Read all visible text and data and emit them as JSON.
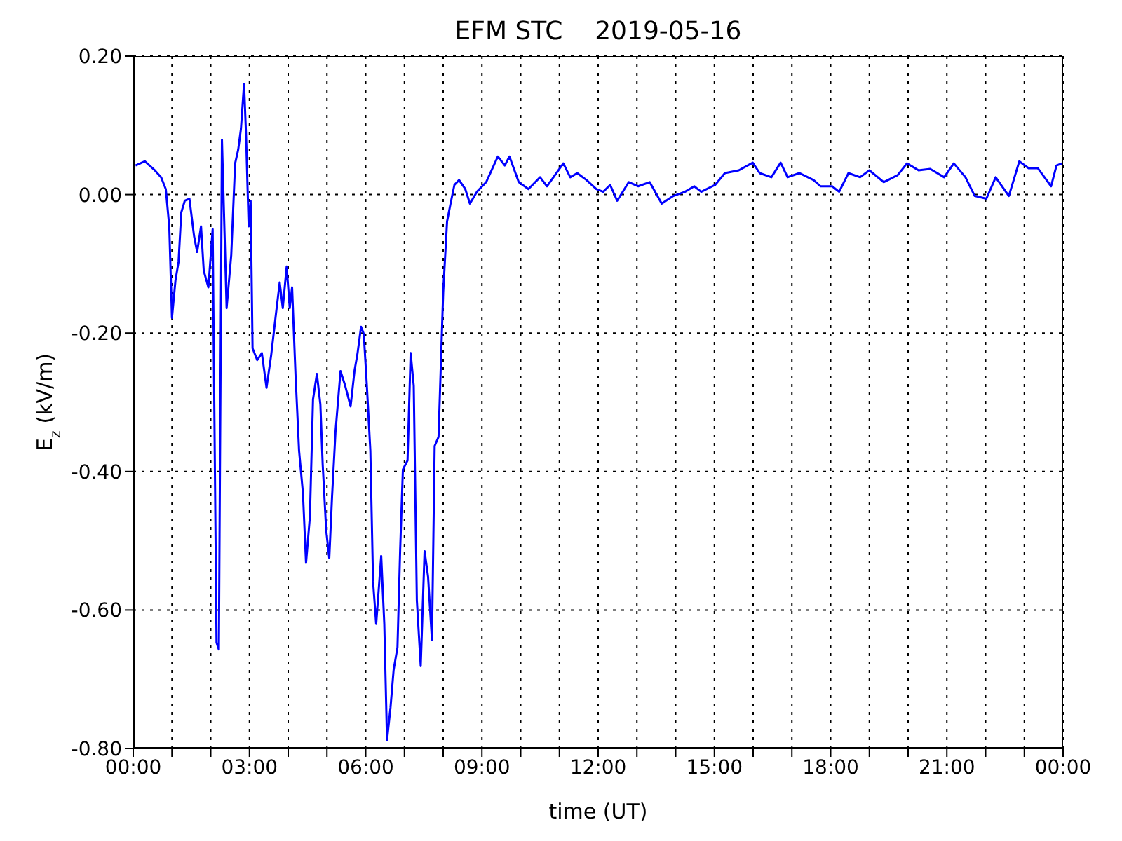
{
  "chart_data": {
    "type": "line",
    "title": "EFM STC    2019-05-16",
    "xlabel": "time (UT)",
    "ylabel": "E$_{z}$ (kV/m)",
    "x": [
      0.06,
      0.3,
      0.54,
      0.72,
      0.84,
      0.93,
      1.0,
      1.09,
      1.17,
      1.24,
      1.33,
      1.45,
      1.57,
      1.65,
      1.75,
      1.82,
      1.94,
      2.05,
      2.15,
      2.21,
      2.29,
      2.41,
      2.53,
      2.63,
      2.71,
      2.78,
      2.86,
      2.91,
      2.98,
      3.03,
      3.08,
      3.2,
      3.32,
      3.44,
      3.56,
      3.68,
      3.78,
      3.86,
      3.96,
      4.04,
      4.1,
      4.19,
      4.28,
      4.38,
      4.46,
      4.56,
      4.64,
      4.74,
      4.83,
      4.89,
      4.98,
      5.06,
      5.13,
      5.22,
      5.35,
      5.47,
      5.61,
      5.71,
      5.79,
      5.88,
      5.95,
      6.03,
      6.12,
      6.19,
      6.27,
      6.4,
      6.48,
      6.55,
      6.64,
      6.72,
      6.82,
      6.89,
      6.96,
      7.08,
      7.16,
      7.24,
      7.32,
      7.42,
      7.52,
      7.61,
      7.71,
      7.78,
      7.88,
      8.0,
      8.1,
      8.19,
      8.29,
      8.41,
      8.57,
      8.69,
      8.87,
      9.11,
      9.41,
      9.59,
      9.71,
      9.95,
      10.2,
      10.5,
      10.68,
      11.1,
      11.28,
      11.46,
      11.7,
      11.95,
      12.13,
      12.31,
      12.49,
      12.79,
      13.03,
      13.33,
      13.64,
      13.94,
      14.24,
      14.48,
      14.66,
      15.02,
      15.27,
      15.63,
      15.99,
      16.17,
      16.47,
      16.71,
      16.89,
      17.19,
      17.56,
      17.74,
      18.04,
      18.22,
      18.46,
      18.76,
      19.0,
      19.37,
      19.73,
      19.97,
      20.27,
      20.57,
      20.93,
      21.18,
      21.48,
      21.72,
      22.02,
      22.26,
      22.6,
      22.87,
      23.11,
      23.35,
      23.69,
      23.83,
      23.97
    ],
    "series": [
      {
        "color": "#0000ff",
        "values": [
          0.042,
          0.048,
          0.036,
          0.025,
          0.008,
          -0.046,
          -0.178,
          -0.124,
          -0.097,
          -0.026,
          -0.009,
          -0.006,
          -0.06,
          -0.083,
          -0.046,
          -0.11,
          -0.134,
          -0.05,
          -0.647,
          -0.657,
          0.079,
          -0.164,
          -0.087,
          0.045,
          0.065,
          0.095,
          0.16,
          0.089,
          -0.046,
          -0.009,
          -0.222,
          -0.239,
          -0.229,
          -0.279,
          -0.232,
          -0.174,
          -0.127,
          -0.164,
          -0.104,
          -0.164,
          -0.134,
          -0.262,
          -0.37,
          -0.431,
          -0.532,
          -0.465,
          -0.296,
          -0.259,
          -0.303,
          -0.39,
          -0.485,
          -0.525,
          -0.438,
          -0.343,
          -0.255,
          -0.276,
          -0.306,
          -0.255,
          -0.229,
          -0.191,
          -0.201,
          -0.276,
          -0.37,
          -0.559,
          -0.62,
          -0.522,
          -0.62,
          -0.788,
          -0.741,
          -0.687,
          -0.654,
          -0.512,
          -0.397,
          -0.384,
          -0.229,
          -0.276,
          -0.586,
          -0.681,
          -0.515,
          -0.552,
          -0.643,
          -0.363,
          -0.35,
          -0.141,
          -0.039,
          -0.013,
          0.014,
          0.021,
          0.008,
          -0.013,
          0.004,
          0.018,
          0.055,
          0.042,
          0.055,
          0.018,
          0.008,
          0.025,
          0.012,
          0.045,
          0.025,
          0.031,
          0.021,
          0.008,
          0.004,
          0.014,
          -0.009,
          0.018,
          0.012,
          0.018,
          -0.013,
          -0.002,
          0.004,
          0.012,
          0.004,
          0.014,
          0.031,
          0.035,
          0.046,
          0.031,
          0.025,
          0.046,
          0.025,
          0.031,
          0.021,
          0.012,
          0.012,
          0.004,
          0.031,
          0.025,
          0.035,
          0.018,
          0.028,
          0.045,
          0.035,
          0.037,
          0.025,
          0.045,
          0.025,
          -0.002,
          -0.006,
          0.025,
          -0.002,
          0.048,
          0.038,
          0.038,
          0.012,
          0.042,
          0.045
        ]
      }
    ],
    "xlim": [
      0,
      24
    ],
    "xticks": [
      {
        "value": 0,
        "label": "00:00"
      },
      {
        "value": 1,
        "label": null
      },
      {
        "value": 2,
        "label": null
      },
      {
        "value": 3,
        "label": "03:00"
      },
      {
        "value": 4,
        "label": null
      },
      {
        "value": 5,
        "label": null
      },
      {
        "value": 6,
        "label": "06:00"
      },
      {
        "value": 7,
        "label": null
      },
      {
        "value": 8,
        "label": null
      },
      {
        "value": 9,
        "label": "09:00"
      },
      {
        "value": 10,
        "label": null
      },
      {
        "value": 11,
        "label": null
      },
      {
        "value": 12,
        "label": "12:00"
      },
      {
        "value": 13,
        "label": null
      },
      {
        "value": 14,
        "label": null
      },
      {
        "value": 15,
        "label": "15:00"
      },
      {
        "value": 16,
        "label": null
      },
      {
        "value": 17,
        "label": null
      },
      {
        "value": 18,
        "label": "18:00"
      },
      {
        "value": 19,
        "label": null
      },
      {
        "value": 20,
        "label": null
      },
      {
        "value": 21,
        "label": "21:00"
      },
      {
        "value": 22,
        "label": null
      },
      {
        "value": 23,
        "label": null
      },
      {
        "value": 24,
        "label": "00:00"
      }
    ],
    "ylim": [
      -0.8,
      0.2
    ],
    "yticks": [
      {
        "value": -0.8,
        "label": "-0.80"
      },
      {
        "value": -0.6,
        "label": "-0.60"
      },
      {
        "value": -0.4,
        "label": "-0.40"
      },
      {
        "value": -0.2,
        "label": "-0.20"
      },
      {
        "value": 0,
        "label": "0.00"
      },
      {
        "value": 0.2,
        "label": "0.20"
      }
    ],
    "grid": true,
    "marker": "none",
    "line_style": "solid"
  }
}
